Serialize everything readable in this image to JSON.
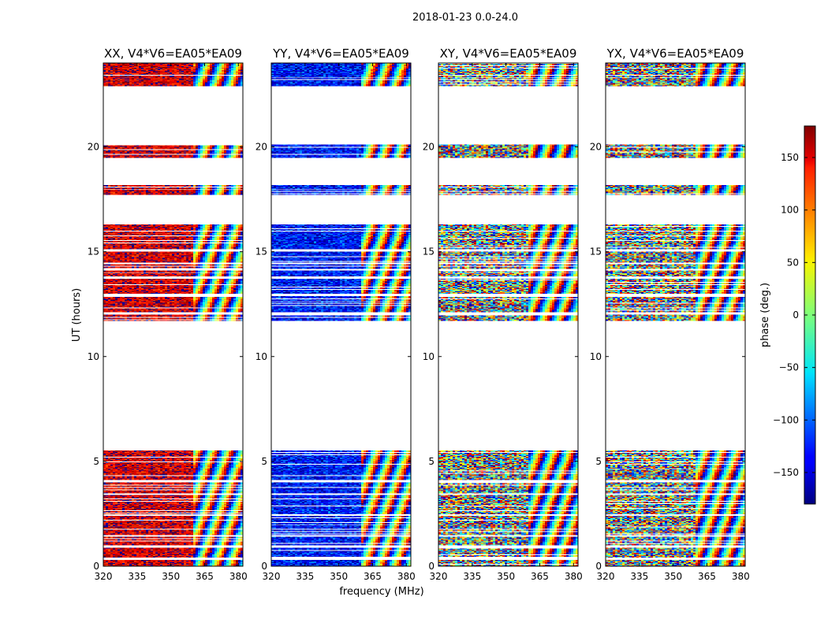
{
  "chart_data": {
    "type": "heatmap",
    "suptitle": "2018-01-23 0.0-24.0",
    "panels": [
      {
        "title": "XX, V4*V6=EA05*EA09",
        "bias": 150,
        "noise": 45
      },
      {
        "title": "YY, V4*V6=EA05*EA09",
        "bias": -130,
        "noise": 50
      },
      {
        "title": "XY, V4*V6=EA05*EA09",
        "bias": 0,
        "noise": 180
      },
      {
        "title": "YX, V4*V6=EA05*EA09",
        "bias": 0,
        "noise": 180
      }
    ],
    "xlabel": "frequency (MHz)",
    "ylabel": "UT (hours)",
    "xlim": [
      320,
      382
    ],
    "ylim": [
      0,
      24
    ],
    "xticks": [
      320,
      335,
      350,
      365,
      380
    ],
    "yticks": [
      0,
      5,
      10,
      15,
      20
    ],
    "data_bands_hours": [
      [
        0.0,
        0.3
      ],
      [
        0.4,
        0.9
      ],
      [
        1.0,
        1.4
      ],
      [
        1.5,
        2.4
      ],
      [
        2.5,
        3.4
      ],
      [
        3.5,
        4.0
      ],
      [
        4.1,
        5.5
      ],
      [
        11.7,
        12.0
      ],
      [
        12.1,
        12.9
      ],
      [
        13.0,
        13.7
      ],
      [
        13.8,
        14.1
      ],
      [
        14.2,
        14.4
      ],
      [
        14.5,
        15.0
      ],
      [
        15.1,
        16.3
      ],
      [
        17.7,
        18.2
      ],
      [
        19.5,
        20.1
      ],
      [
        22.9,
        24.0
      ]
    ],
    "colorbar": {
      "label": "phase (deg.)",
      "range": [
        -180,
        180
      ],
      "ticks": [
        -150,
        -100,
        -50,
        0,
        50,
        100,
        150
      ],
      "tick_labels": [
        "−150",
        "−100",
        "−50",
        "0",
        "50",
        "100",
        "150"
      ]
    }
  }
}
